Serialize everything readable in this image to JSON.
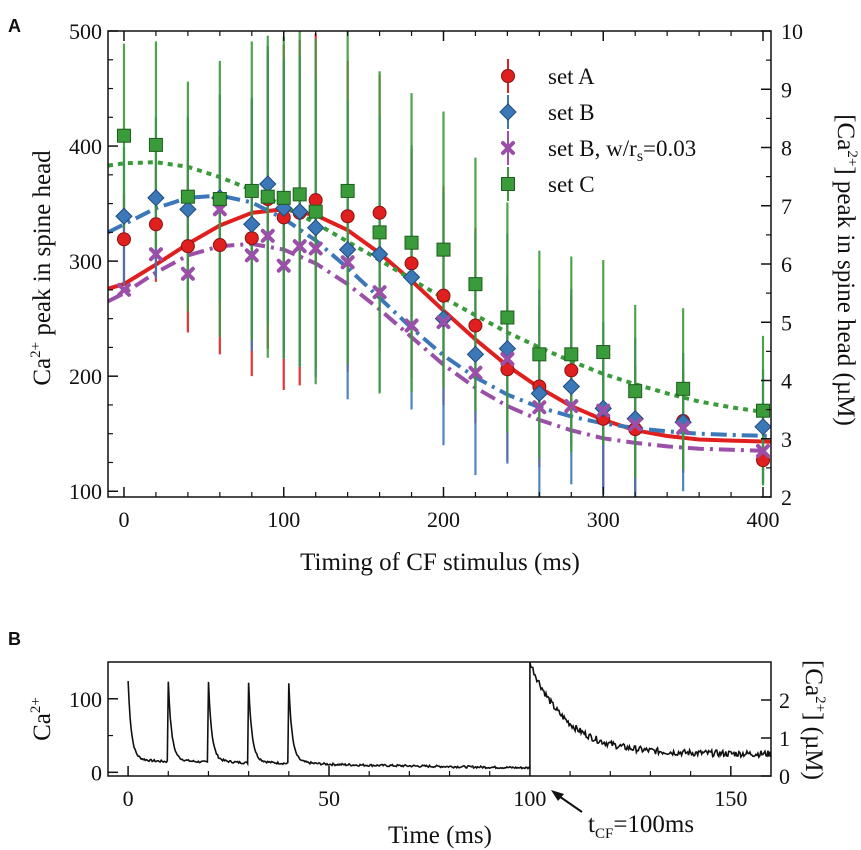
{
  "panels": {
    "a": "A",
    "b": "B"
  },
  "chart_data": [
    {
      "type": "scatter",
      "panel": "A",
      "xlabel": "Timing of CF stimulus (ms)",
      "ylabel": "Ca2+ peak in spine head",
      "ylabel_right": "[Ca2+] peak in spine head (µM)",
      "xlim": [
        -10,
        405
      ],
      "ylim": [
        95,
        500
      ],
      "ylim_right": [
        2,
        10
      ],
      "x_ticks": [
        0,
        100,
        200,
        300,
        400
      ],
      "y_ticks": [
        100,
        200,
        300,
        400,
        500
      ],
      "y_ticks_right": [
        2,
        3,
        4,
        5,
        6,
        7,
        8,
        9,
        10
      ],
      "legend": "top-right",
      "grid": false,
      "series": [
        {
          "name": "set A",
          "marker": "circle",
          "color": "#e0201e",
          "x": [
            0,
            20,
            40,
            60,
            80,
            90,
            100,
            110,
            120,
            140,
            160,
            180,
            200,
            220,
            240,
            260,
            280,
            300,
            320,
            350,
            400
          ],
          "y": [
            319,
            332,
            313,
            314,
            320,
            354,
            338,
            342,
            353,
            339,
            342,
            298,
            270,
            244,
            206,
            191,
            205,
            163,
            154,
            161,
            127
          ],
          "err": [
            40,
            50,
            75,
            95,
            120,
            130,
            150,
            150,
            145,
            135,
            120,
            100,
            95,
            85,
            80,
            70,
            65,
            60,
            55,
            45,
            20
          ],
          "fit": {
            "style": "solid",
            "x": [
              -10,
              0,
              20,
              40,
              60,
              80,
              100,
              120,
              140,
              160,
              180,
              200,
              220,
              240,
              260,
              280,
              300,
              320,
              340,
              360,
              380,
              405
            ],
            "y": [
              276,
              280,
              297,
              315,
              331,
              342,
              345,
              340,
              327,
              307,
              283,
              257,
              232,
              209,
              190,
              174,
              162,
              153,
              148,
              145,
              144,
              143
            ]
          }
        },
        {
          "name": "set B",
          "marker": "diamond",
          "color": "#3c78b8",
          "x": [
            0,
            20,
            40,
            60,
            80,
            90,
            100,
            110,
            120,
            140,
            160,
            180,
            200,
            220,
            240,
            260,
            280,
            300,
            320,
            350,
            400
          ],
          "y": [
            339,
            355,
            345,
            355,
            332,
            367,
            346,
            343,
            329,
            310,
            306,
            286,
            250,
            219,
            224,
            185,
            191,
            172,
            163,
            160,
            156
          ],
          "err": [
            60,
            70,
            80,
            90,
            110,
            120,
            130,
            135,
            130,
            130,
            120,
            115,
            110,
            105,
            100,
            90,
            85,
            75,
            70,
            60,
            50
          ],
          "fit": {
            "style": "dashdot",
            "x": [
              -10,
              0,
              20,
              40,
              60,
              80,
              100,
              120,
              140,
              160,
              180,
              200,
              220,
              240,
              260,
              280,
              300,
              320,
              340,
              360,
              380,
              405
            ],
            "y": [
              325,
              332,
              346,
              355,
              357,
              351,
              337,
              318,
              294,
              268,
              242,
              218,
              199,
              184,
              173,
              165,
              159,
              155,
              152,
              150,
              149,
              148
            ]
          }
        },
        {
          "name": "set B, w/rs=0.03",
          "marker": "x",
          "color": "#9b4fa8",
          "x": [
            0,
            20,
            40,
            60,
            80,
            90,
            100,
            110,
            120,
            140,
            160,
            180,
            200,
            220,
            240,
            260,
            280,
            300,
            320,
            350,
            400
          ],
          "y": [
            275,
            306,
            289,
            345,
            305,
            322,
            296,
            313,
            311,
            299,
            273,
            244,
            247,
            203,
            215,
            173,
            174,
            170,
            158,
            155,
            135
          ],
          "err": [
            0,
            0,
            0,
            0,
            0,
            0,
            0,
            0,
            0,
            0,
            0,
            0,
            0,
            0,
            0,
            0,
            0,
            0,
            0,
            0,
            0
          ],
          "fit": {
            "style": "dashdot",
            "x": [
              -10,
              0,
              20,
              40,
              60,
              80,
              100,
              120,
              140,
              160,
              180,
              200,
              220,
              240,
              260,
              280,
              300,
              320,
              340,
              360,
              380,
              405
            ],
            "y": [
              265,
              272,
              290,
              305,
              313,
              315,
              310,
              298,
              280,
              258,
              234,
              210,
              190,
              174,
              162,
              153,
              146,
              142,
              139,
              137,
              136,
              135
            ]
          }
        },
        {
          "name": "set C",
          "marker": "square",
          "color": "#3a9b3a",
          "x": [
            0,
            20,
            40,
            60,
            80,
            90,
            100,
            110,
            120,
            140,
            160,
            180,
            200,
            220,
            240,
            260,
            280,
            300,
            320,
            350,
            400
          ],
          "y": [
            409,
            401,
            356,
            354,
            361,
            356,
            355,
            358,
            343,
            361,
            325,
            316,
            310,
            280,
            251,
            219,
            219,
            221,
            187,
            189,
            170
          ],
          "err": [
            80,
            90,
            100,
            120,
            130,
            140,
            140,
            150,
            150,
            150,
            140,
            130,
            120,
            110,
            100,
            90,
            85,
            80,
            75,
            70,
            65
          ],
          "fit": {
            "style": "dotted",
            "x": [
              -10,
              0,
              20,
              40,
              60,
              80,
              100,
              120,
              140,
              160,
              180,
              200,
              220,
              240,
              260,
              280,
              300,
              320,
              340,
              360,
              380,
              405
            ],
            "y": [
              383,
              385,
              386,
              382,
              373,
              362,
              348,
              333,
              317,
              301,
              284,
              268,
              253,
              238,
              225,
              213,
              202,
              193,
              185,
              178,
              173,
              168
            ]
          }
        }
      ]
    },
    {
      "type": "line",
      "panel": "B",
      "xlabel": "Time (ms)",
      "ylabel": "Ca2+",
      "ylabel_right": "[Ca2+] (µM)",
      "xlim": [
        -5,
        160
      ],
      "ylim": [
        -5,
        150
      ],
      "ylim_right": [
        0,
        3
      ],
      "x_ticks": [
        0,
        50,
        100,
        150
      ],
      "y_ticks": [
        0,
        100
      ],
      "y_ticks_right": [
        0,
        1,
        2
      ],
      "annotation": "tCF=100ms",
      "annotation_x": 100,
      "pf_spike_times": [
        0,
        10,
        20,
        30,
        40
      ],
      "pf_spike_peak": 118,
      "cf_time": 100,
      "cf_peak": 150,
      "baseline_start": 15,
      "baseline_end": 6,
      "cf_decay_plateau": 25
    }
  ]
}
